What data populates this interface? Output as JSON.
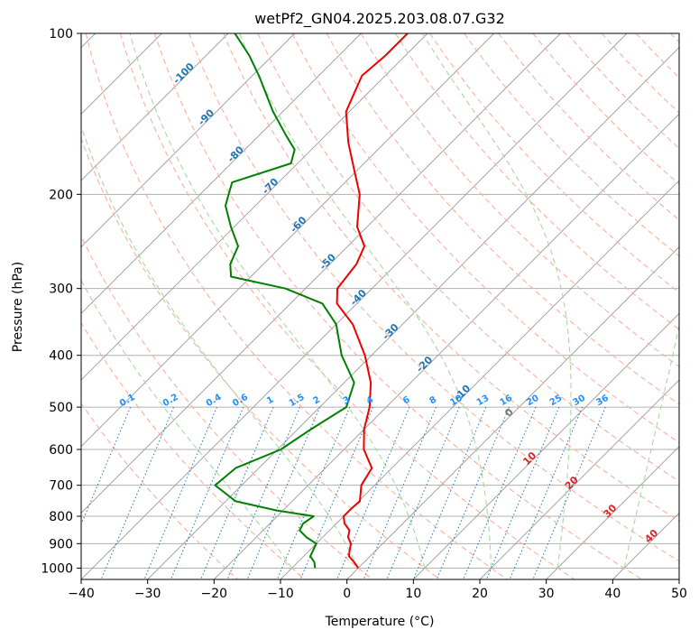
{
  "chart_data": {
    "type": "line",
    "title": "wetPf2_GN04.2025.203.08.07.G32",
    "xlabel": "Temperature (°C)",
    "ylabel": "Pressure (hPa)",
    "xlim": [
      -40,
      50
    ],
    "ylim": [
      1050,
      100
    ],
    "y_scale": "log",
    "skew": true,
    "grid": true,
    "x_ticks": [
      -40,
      -30,
      -20,
      -10,
      0,
      10,
      20,
      30,
      40,
      50
    ],
    "y_ticks": [
      100,
      200,
      300,
      400,
      500,
      600,
      700,
      800,
      900,
      1000
    ],
    "series": [
      {
        "color": "#ee0000",
        "points": [
          [
            1000,
            0.0
          ],
          [
            975,
            -1.5
          ],
          [
            950,
            -3.2
          ],
          [
            925,
            -4.0
          ],
          [
            900,
            -4.8
          ],
          [
            875,
            -6.2
          ],
          [
            850,
            -7.0
          ],
          [
            825,
            -8.8
          ],
          [
            800,
            -10.0
          ],
          [
            775,
            -10.0
          ],
          [
            750,
            -9.8
          ],
          [
            700,
            -12.0
          ],
          [
            650,
            -13.0
          ],
          [
            600,
            -17.0
          ],
          [
            550,
            -20.0
          ],
          [
            500,
            -22.5
          ],
          [
            450,
            -26.0
          ],
          [
            400,
            -31.0
          ],
          [
            350,
            -37.5
          ],
          [
            320,
            -43.0
          ],
          [
            300,
            -45.2
          ],
          [
            270,
            -46.0
          ],
          [
            250,
            -47.5
          ],
          [
            230,
            -51.5
          ],
          [
            200,
            -56.0
          ],
          [
            180,
            -60.5
          ],
          [
            160,
            -65.5
          ],
          [
            140,
            -70.5
          ],
          [
            120,
            -73.5
          ],
          [
            110,
            -73.0
          ],
          [
            100,
            -73.0
          ]
        ]
      },
      {
        "color": "#008000",
        "points": [
          [
            1000,
            -6.5
          ],
          [
            975,
            -7.5
          ],
          [
            950,
            -9.0
          ],
          [
            900,
            -10.0
          ],
          [
            875,
            -12.5
          ],
          [
            850,
            -14.5
          ],
          [
            825,
            -15.0
          ],
          [
            800,
            -14.5
          ],
          [
            780,
            -21.0
          ],
          [
            750,
            -28.5
          ],
          [
            700,
            -34.0
          ],
          [
            650,
            -33.5
          ],
          [
            600,
            -29.5
          ],
          [
            550,
            -28.0
          ],
          [
            500,
            -26.0
          ],
          [
            450,
            -28.5
          ],
          [
            400,
            -34.5
          ],
          [
            350,
            -40.0
          ],
          [
            320,
            -45.2
          ],
          [
            300,
            -53.0
          ],
          [
            285,
            -63.0
          ],
          [
            270,
            -65.0
          ],
          [
            250,
            -66.5
          ],
          [
            230,
            -70.5
          ],
          [
            210,
            -74.5
          ],
          [
            190,
            -77.0
          ],
          [
            175,
            -71.0
          ],
          [
            165,
            -72.5
          ],
          [
            155,
            -76.0
          ],
          [
            140,
            -81.5
          ],
          [
            120,
            -89.0
          ],
          [
            110,
            -93.5
          ],
          [
            100,
            -99.0
          ]
        ]
      }
    ],
    "dry_adiabats": [
      -20,
      -10,
      0,
      10,
      20,
      30,
      40,
      50,
      60,
      70,
      80,
      90,
      100,
      110,
      120,
      130,
      140,
      150,
      160,
      170,
      180,
      190,
      200
    ],
    "moist_adiabats": [
      -10,
      0,
      10,
      20,
      30,
      40
    ],
    "moist_adiabat_labels": [
      {
        "text": "-100",
        "t": -100,
        "p": 120
      },
      {
        "text": "-90",
        "t": -90,
        "p": 145
      },
      {
        "text": "-80",
        "t": -80,
        "p": 170
      },
      {
        "text": "-70",
        "t": -70,
        "p": 195
      },
      {
        "text": "-60",
        "t": -60,
        "p": 230
      },
      {
        "text": "-50",
        "t": -50,
        "p": 270
      },
      {
        "text": "-40",
        "t": -40,
        "p": 315
      },
      {
        "text": "-30",
        "t": -30,
        "p": 365
      },
      {
        "text": "-20",
        "t": -20,
        "p": 420
      },
      {
        "text": "-10",
        "t": -10,
        "p": 475
      }
    ],
    "mixing_ratio_lines": [
      "0.1",
      "0.2",
      "0.4",
      "0.6",
      "1",
      "1.5",
      "2",
      "3",
      "4",
      "6",
      "8",
      "10",
      "13",
      "16",
      "20",
      "25",
      "30",
      "36"
    ],
    "mixing_ratio_dewpoints_500": [
      -58.5,
      -52.0,
      -45.5,
      -41.5,
      -37.0,
      -33.0,
      -30.0,
      -25.5,
      -22.0,
      -16.5,
      -12.5,
      -9.0,
      -5.0,
      -1.5,
      2.5,
      6.0,
      9.5,
      13.0
    ],
    "wetbulb_labels": [
      {
        "text": "0",
        "t": 0,
        "p": 517,
        "color": "#777777"
      },
      {
        "text": "10",
        "t": 10,
        "p": 630,
        "color": "#d62728"
      },
      {
        "text": "20",
        "t": 20,
        "p": 700,
        "color": "#d62728"
      },
      {
        "text": "30",
        "t": 30,
        "p": 790,
        "color": "#d62728"
      },
      {
        "text": "40",
        "t": 40,
        "p": 880,
        "color": "#d62728"
      }
    ],
    "colors": {
      "temperature": "#ee0000",
      "dewpoint": "#008000",
      "isotherm": "#999999",
      "dry_adiabat": "#fcaf9a",
      "moist_adiabat": "#a8d8a0",
      "mixing_ratio": "#1f77b4",
      "mixing_ratio_label": "#1e90ff",
      "moist_label": "#1f77b4"
    }
  }
}
